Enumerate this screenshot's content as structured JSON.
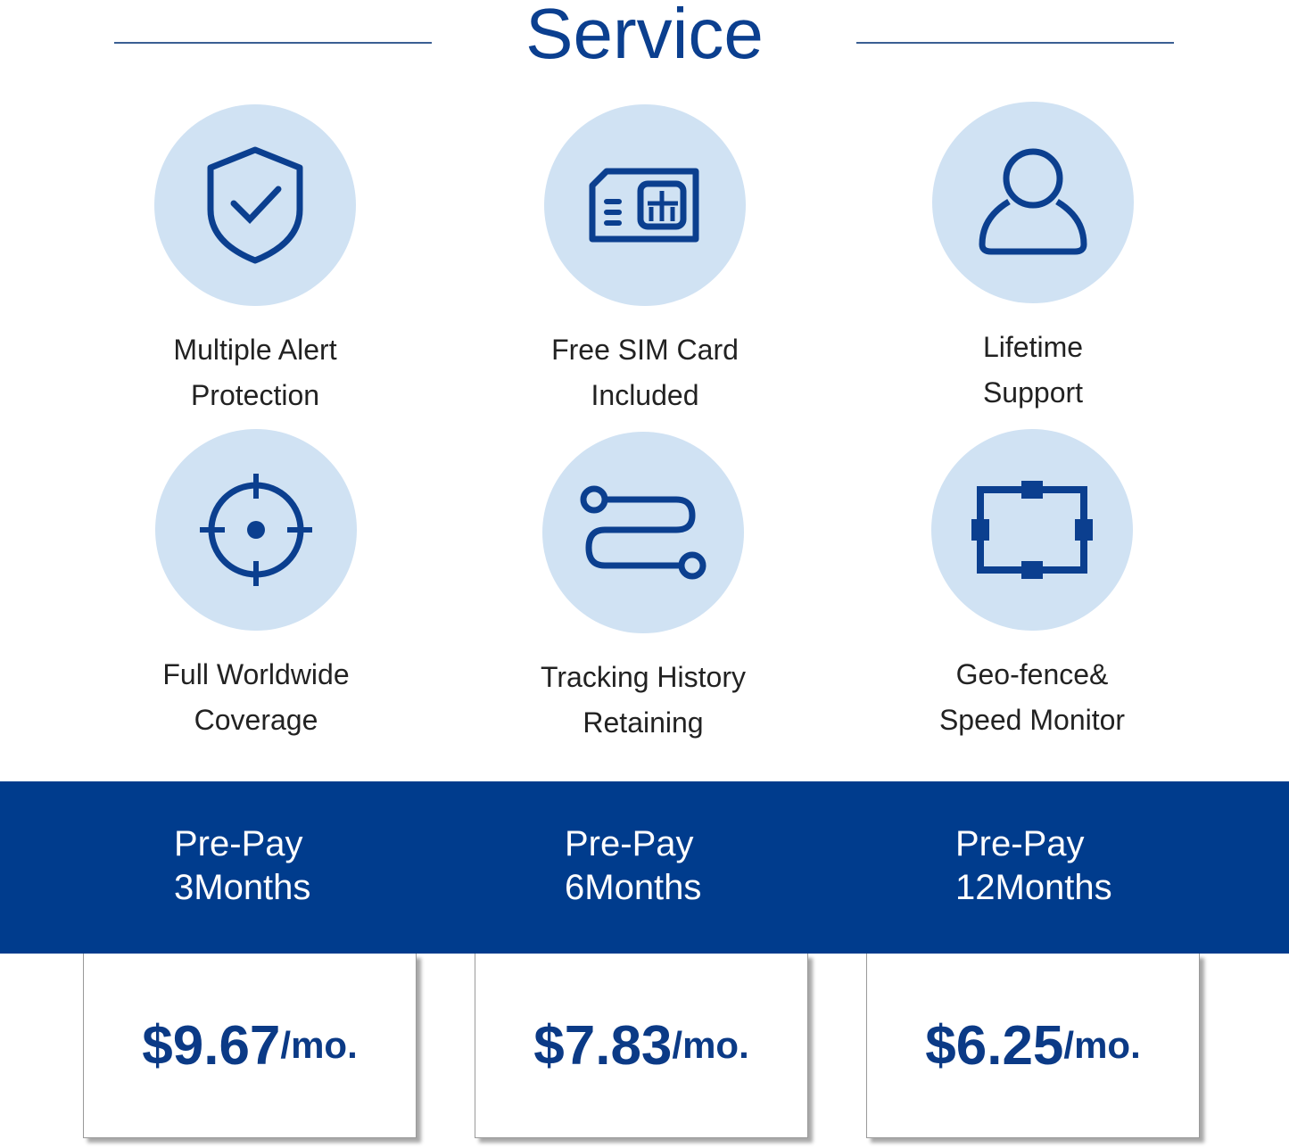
{
  "title": "Service",
  "colors": {
    "accent": "#003c8d",
    "circle": "#d0e2f3"
  },
  "features": [
    {
      "icon": "shield-check-icon",
      "line1": "Multiple Alert",
      "line2": "Protection"
    },
    {
      "icon": "sim-card-icon",
      "line1": "Free SIM Card",
      "line2": "Included"
    },
    {
      "icon": "user-icon",
      "line1": "Lifetime",
      "line2": "Support"
    },
    {
      "icon": "crosshair-icon",
      "line1": "Full Worldwide",
      "line2": "Coverage"
    },
    {
      "icon": "route-icon",
      "line1": "Tracking History",
      "line2": "Retaining"
    },
    {
      "icon": "geofence-icon",
      "line1": "Geo-fence&",
      "line2": "Speed Monitor"
    }
  ],
  "plans": [
    {
      "line1": "Pre-Pay",
      "line2": "3Months",
      "price": "$9.67",
      "unit": "/mo."
    },
    {
      "line1": "Pre-Pay",
      "line2": "6Months",
      "price": "$7.83",
      "unit": "/mo."
    },
    {
      "line1": "Pre-Pay",
      "line2": "12Months",
      "price": "$6.25",
      "unit": "/mo."
    }
  ]
}
